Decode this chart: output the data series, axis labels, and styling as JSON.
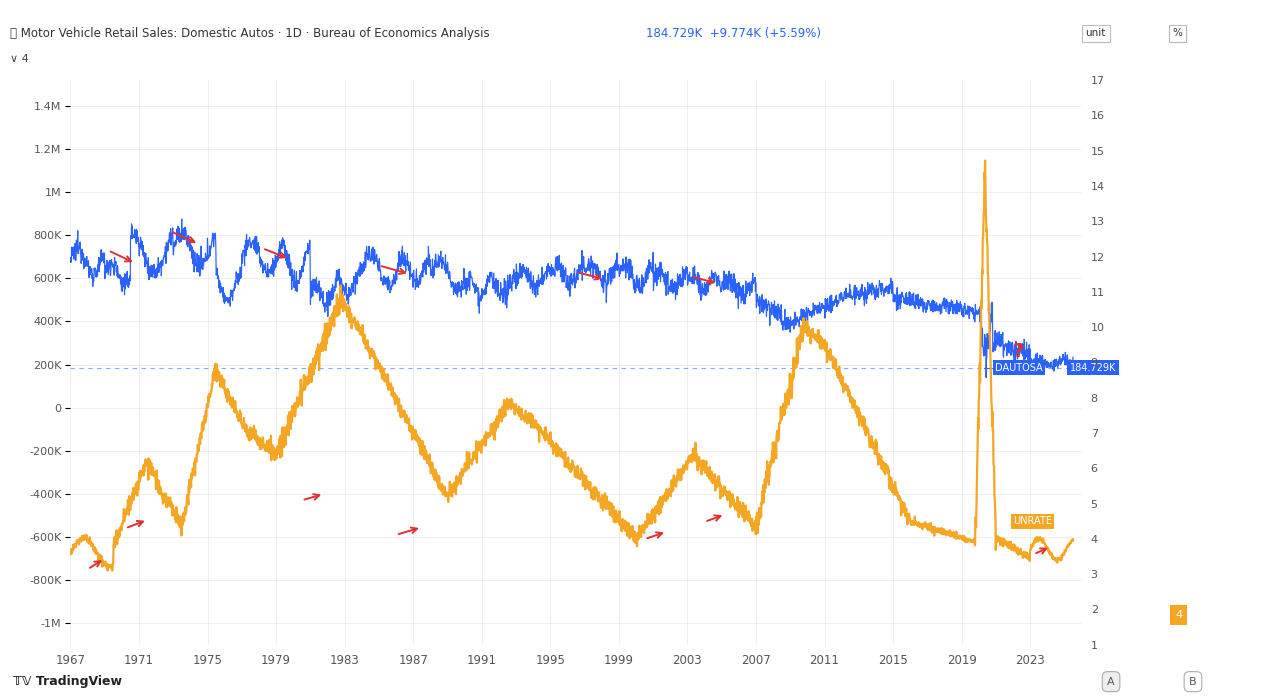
{
  "title_left": "Motor Vehicle Retail Sales: Domestic Autos · 1D · Bureau of Economics Analysis",
  "title_right": "184.729K +9.774K (+5.59%)",
  "background_color": "#ffffff",
  "plot_bg_color": "#ffffff",
  "grid_color": "#e0e0e0",
  "blue_color": "#2962ff",
  "orange_color": "#f5a623",
  "red_color": "#e03030",
  "left_ticks": [
    -1000000,
    -800000,
    -600000,
    -400000,
    -200000,
    0,
    200000,
    400000,
    600000,
    800000,
    1000000,
    1200000,
    1400000
  ],
  "left_labels": [
    "-1M",
    "-800K",
    "-600K",
    "-400K",
    "-200K",
    "0",
    "200K",
    "400K",
    "600K",
    "800K",
    "1M",
    "1.2M",
    "1.4M"
  ],
  "right_ticks": [
    1,
    2,
    3,
    4,
    5,
    6,
    7,
    8,
    9,
    10,
    11,
    12,
    13,
    14,
    15,
    16,
    17
  ],
  "right_labels": [
    "1",
    "2",
    "3",
    "4",
    "5",
    "6",
    "7",
    "8",
    "9",
    "10",
    "11",
    "12",
    "13",
    "14",
    "15",
    "16",
    "17"
  ],
  "xticks": [
    1967,
    1971,
    1975,
    1979,
    1983,
    1987,
    1991,
    1995,
    1999,
    2003,
    2007,
    2011,
    2015,
    2019,
    2023
  ],
  "xmin": 1967,
  "xmax": 2026,
  "ymin": -1100000,
  "ymax": 1520000,
  "hline_y": 184729,
  "blue_arrows": [
    [
      1969.2,
      730000,
      1970.8,
      670000
    ],
    [
      1972.8,
      820000,
      1974.5,
      760000
    ],
    [
      1978.2,
      740000,
      1979.8,
      690000
    ],
    [
      1985.0,
      660000,
      1986.8,
      620000
    ],
    [
      1996.5,
      630000,
      1998.2,
      595000
    ],
    [
      2003.2,
      610000,
      2004.8,
      575000
    ]
  ],
  "orange_arrows": [
    [
      1968.0,
      -750000,
      1969.0,
      -700000
    ],
    [
      1970.2,
      -560000,
      1971.5,
      -520000
    ],
    [
      1980.5,
      -430000,
      1981.8,
      -400000
    ],
    [
      1986.0,
      -590000,
      1987.5,
      -555000
    ],
    [
      2000.5,
      -610000,
      2001.8,
      -575000
    ],
    [
      2004.0,
      -530000,
      2005.2,
      -495000
    ],
    [
      2023.2,
      -680000,
      2024.2,
      -645000
    ]
  ]
}
